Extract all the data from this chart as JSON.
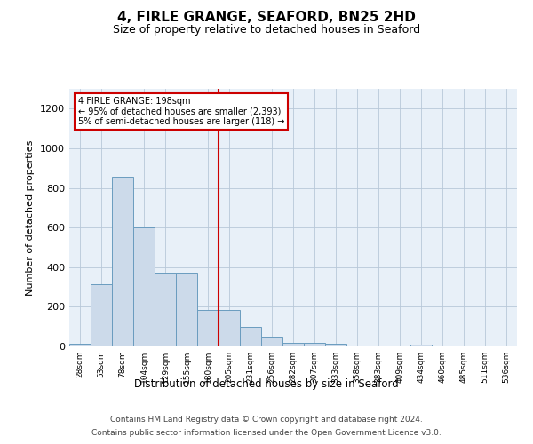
{
  "title1": "4, FIRLE GRANGE, SEAFORD, BN25 2HD",
  "title2": "Size of property relative to detached houses in Seaford",
  "xlabel": "Distribution of detached houses by size in Seaford",
  "ylabel": "Number of detached properties",
  "footer1": "Contains HM Land Registry data © Crown copyright and database right 2024.",
  "footer2": "Contains public sector information licensed under the Open Government Licence v3.0.",
  "categories": [
    "28sqm",
    "53sqm",
    "78sqm",
    "104sqm",
    "129sqm",
    "155sqm",
    "180sqm",
    "205sqm",
    "231sqm",
    "256sqm",
    "282sqm",
    "307sqm",
    "333sqm",
    "358sqm",
    "383sqm",
    "409sqm",
    "434sqm",
    "460sqm",
    "485sqm",
    "511sqm",
    "536sqm"
  ],
  "values": [
    15,
    315,
    855,
    600,
    370,
    370,
    185,
    185,
    100,
    45,
    20,
    17,
    15,
    0,
    0,
    0,
    10,
    0,
    0,
    0,
    0
  ],
  "bar_color": "#ccdaea",
  "bar_edge_color": "#6a9cbf",
  "vline_x_index": 7,
  "annotation_line1": "4 FIRLE GRANGE: 198sqm",
  "annotation_line2": "← 95% of detached houses are smaller (2,393)",
  "annotation_line3": "5% of semi-detached houses are larger (118) →",
  "ylim": [
    0,
    1300
  ],
  "yticks": [
    0,
    200,
    400,
    600,
    800,
    1000,
    1200
  ],
  "box_facecolor": "#ffffff",
  "box_edgecolor": "#cc0000",
  "vline_color": "#cc0000",
  "bg_color": "#e8f0f8",
  "title1_fontsize": 11,
  "title2_fontsize": 9
}
